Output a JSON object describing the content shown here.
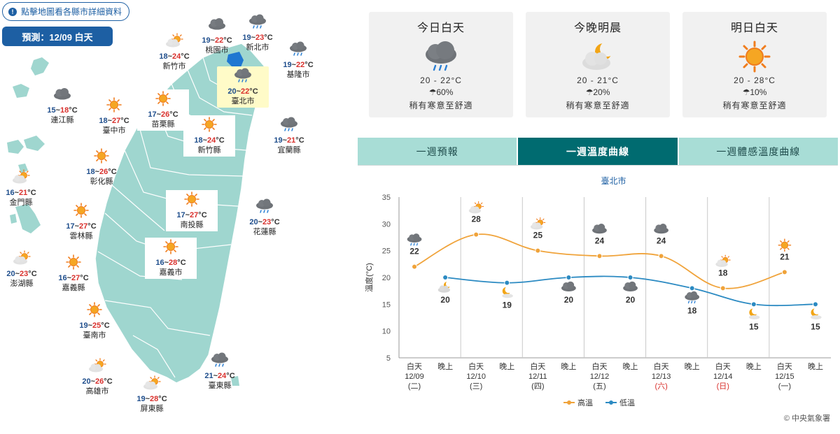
{
  "map": {
    "link_label": "點擊地圖看各縣市詳細資料",
    "forecast_label": "預測：12/09 白天",
    "cities": [
      {
        "name": "桃園市",
        "lo": "19",
        "hi": "22",
        "icon": "cloudy-icon",
        "selected": false,
        "boxed": false
      },
      {
        "name": "新北市",
        "lo": "19",
        "hi": "23",
        "icon": "rain-icon",
        "selected": false,
        "boxed": false
      },
      {
        "name": "新竹市",
        "lo": "18",
        "hi": "24",
        "icon": "sun-cloud-icon",
        "selected": false,
        "boxed": false
      },
      {
        "name": "基隆市",
        "lo": "19",
        "hi": "22",
        "icon": "rain-icon",
        "selected": false,
        "boxed": false
      },
      {
        "name": "臺北市",
        "lo": "20",
        "hi": "22",
        "icon": "rain-icon",
        "selected": true,
        "boxed": false
      },
      {
        "name": "連江縣",
        "lo": "15",
        "hi": "18",
        "icon": "cloudy-icon",
        "selected": false,
        "boxed": false
      },
      {
        "name": "臺中市",
        "lo": "18",
        "hi": "27",
        "icon": "sunny-icon",
        "selected": false,
        "boxed": false
      },
      {
        "name": "苗栗縣",
        "lo": "17",
        "hi": "26",
        "icon": "sunny-icon",
        "selected": false,
        "boxed": true
      },
      {
        "name": "新竹縣",
        "lo": "18",
        "hi": "24",
        "icon": "sunny-icon",
        "selected": false,
        "boxed": true
      },
      {
        "name": "宜蘭縣",
        "lo": "19",
        "hi": "21",
        "icon": "rain-icon",
        "selected": false,
        "boxed": false
      },
      {
        "name": "彰化縣",
        "lo": "18",
        "hi": "26",
        "icon": "sunny-icon",
        "selected": false,
        "boxed": false
      },
      {
        "name": "金門縣",
        "lo": "16",
        "hi": "21",
        "icon": "sun-cloud-icon",
        "selected": false,
        "boxed": false
      },
      {
        "name": "雲林縣",
        "lo": "17",
        "hi": "27",
        "icon": "sunny-icon",
        "selected": false,
        "boxed": false
      },
      {
        "name": "南投縣",
        "lo": "17",
        "hi": "27",
        "icon": "sunny-icon",
        "selected": false,
        "boxed": true
      },
      {
        "name": "花蓮縣",
        "lo": "20",
        "hi": "23",
        "icon": "rain-icon",
        "selected": false,
        "boxed": false
      },
      {
        "name": "澎湖縣",
        "lo": "20",
        "hi": "23",
        "icon": "sun-cloud-icon",
        "selected": false,
        "boxed": false
      },
      {
        "name": "嘉義縣",
        "lo": "16",
        "hi": "27",
        "icon": "sunny-icon",
        "selected": false,
        "boxed": false
      },
      {
        "name": "嘉義市",
        "lo": "16",
        "hi": "28",
        "icon": "sunny-icon",
        "selected": false,
        "boxed": true
      },
      {
        "name": "臺南市",
        "lo": "19",
        "hi": "25",
        "icon": "sunny-icon",
        "selected": false,
        "boxed": false
      },
      {
        "name": "高雄市",
        "lo": "20",
        "hi": "26",
        "icon": "sun-cloud-icon",
        "selected": false,
        "boxed": false
      },
      {
        "name": "屏東縣",
        "lo": "19",
        "hi": "28",
        "icon": "sun-cloud-icon",
        "selected": false,
        "boxed": false
      },
      {
        "name": "臺東縣",
        "lo": "21",
        "hi": "24",
        "icon": "rain-icon",
        "selected": false,
        "boxed": false
      }
    ],
    "deg_unit": "°C",
    "range_sep": "~"
  },
  "cards": [
    {
      "title": "今日白天",
      "temp": "20 - 22°C",
      "rain": "☂60%",
      "comfort": "稍有寒意至舒適",
      "icon": "rain-icon"
    },
    {
      "title": "今晚明晨",
      "temp": "20 - 21°C",
      "rain": "☂20%",
      "comfort": "稍有寒意至舒適",
      "icon": "moon-cloud-icon"
    },
    {
      "title": "明日白天",
      "temp": "20 - 28°C",
      "rain": "☂10%",
      "comfort": "稍有寒意至舒適",
      "icon": "sunny-icon"
    }
  ],
  "tabs": [
    {
      "label": "一週預報",
      "active": false
    },
    {
      "label": "一週溫度曲線",
      "active": true
    },
    {
      "label": "一週體感溫度曲線",
      "active": false
    }
  ],
  "chart_data": {
    "type": "line",
    "title": "臺北市",
    "ylabel": "溫度(°C)",
    "ylim": [
      5,
      35
    ],
    "yticks": [
      5,
      10,
      15,
      20,
      25,
      30,
      35
    ],
    "categories": [
      {
        "period": "白天",
        "date": "12/09",
        "weekday": "(二)",
        "weekend": false
      },
      {
        "period": "晚上",
        "date": "",
        "weekday": "",
        "weekend": false
      },
      {
        "period": "白天",
        "date": "12/10",
        "weekday": "(三)",
        "weekend": false
      },
      {
        "period": "晚上",
        "date": "",
        "weekday": "",
        "weekend": false
      },
      {
        "period": "白天",
        "date": "12/11",
        "weekday": "(四)",
        "weekend": false
      },
      {
        "period": "晚上",
        "date": "",
        "weekday": "",
        "weekend": false
      },
      {
        "period": "白天",
        "date": "12/12",
        "weekday": "(五)",
        "weekend": false
      },
      {
        "period": "晚上",
        "date": "",
        "weekday": "",
        "weekend": false
      },
      {
        "period": "白天",
        "date": "12/13",
        "weekday": "(六)",
        "weekend": true
      },
      {
        "period": "晚上",
        "date": "",
        "weekday": "",
        "weekend": false
      },
      {
        "period": "白天",
        "date": "12/14",
        "weekday": "(日)",
        "weekend": true
      },
      {
        "period": "晚上",
        "date": "",
        "weekday": "",
        "weekend": false
      },
      {
        "period": "白天",
        "date": "12/15",
        "weekday": "(一)",
        "weekend": false
      },
      {
        "period": "晚上",
        "date": "",
        "weekday": "",
        "weekend": false
      }
    ],
    "series": [
      {
        "name": "高溫",
        "color": "#f0a33a",
        "points": [
          {
            "x": 0,
            "y": 22,
            "icon": "rain-icon"
          },
          {
            "x": 2,
            "y": 28,
            "icon": "sun-cloud-icon"
          },
          {
            "x": 4,
            "y": 25,
            "icon": "sun-cloud-icon"
          },
          {
            "x": 6,
            "y": 24,
            "icon": "cloudy-icon"
          },
          {
            "x": 8,
            "y": 24,
            "icon": "cloudy-icon"
          },
          {
            "x": 10,
            "y": 18,
            "icon": "sun-cloud-icon"
          },
          {
            "x": 12,
            "y": 21,
            "icon": "sunny-icon"
          }
        ]
      },
      {
        "name": "低溫",
        "color": "#2b8ac2",
        "points": [
          {
            "x": 1,
            "y": 20,
            "icon": "moon-cloud-icon"
          },
          {
            "x": 3,
            "y": 19,
            "icon": "moon-icon"
          },
          {
            "x": 5,
            "y": 20,
            "icon": "cloudy-icon"
          },
          {
            "x": 7,
            "y": 20,
            "icon": "cloudy-icon"
          },
          {
            "x": 9,
            "y": 18,
            "icon": "rain-icon"
          },
          {
            "x": 11,
            "y": 15,
            "icon": "moon-icon"
          },
          {
            "x": 13,
            "y": 15,
            "icon": "moon-icon"
          }
        ]
      }
    ],
    "legend_position": "bottom",
    "grid": "vertical-day-separators"
  },
  "copyright": "© 中央氣象署"
}
